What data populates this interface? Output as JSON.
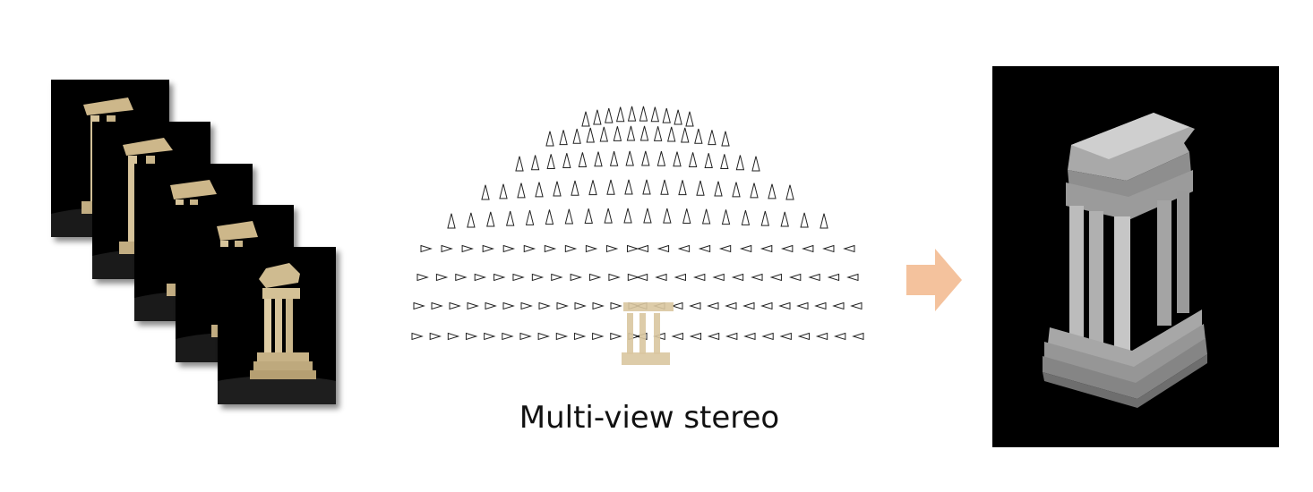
{
  "caption": "Multi-view stereo",
  "colors": {
    "arrow": "#f4c29d",
    "photo_background": "#000000",
    "stone": "#d9c7a0",
    "mesh": "#bdbdbd",
    "camera_stroke": "#222222"
  },
  "icons": {
    "process_arrow": "right-arrow-icon"
  }
}
